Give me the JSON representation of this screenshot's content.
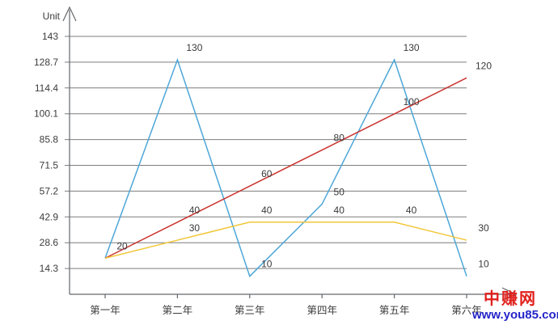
{
  "chart_data": {
    "type": "line",
    "title": "",
    "unit_label": "Unit",
    "categories": [
      "第一年",
      "第二年",
      "第三年",
      "第四年",
      "第五年",
      "第六年"
    ],
    "y_ticks": [
      143,
      128.7,
      114.4,
      100.1,
      85.8,
      71.5,
      57.2,
      42.9,
      28.6,
      14.3
    ],
    "ylim": [
      0,
      143
    ],
    "grid": true,
    "legend": "none",
    "series": [
      {
        "name": "series-blue",
        "color": "#4da7d8",
        "values": [
          20,
          130,
          10,
          50,
          130,
          10
        ]
      },
      {
        "name": "series-red",
        "color": "#ca3431",
        "values": [
          20,
          40,
          60,
          80,
          100,
          120
        ]
      },
      {
        "name": "series-yellow",
        "color": "#f2c73b",
        "values": [
          20,
          30,
          40,
          40,
          40,
          30
        ]
      }
    ],
    "shared_start_label": "20",
    "axis_color": "#63676b",
    "grid_color": "#7d7d7d",
    "text_color": "#3c3c3c",
    "label_color": "#3a3a3a"
  },
  "watermark": {
    "site_name": "中赚网",
    "site_url": "www.you85.com",
    "name_color": "#e0201c",
    "url_color": "#2424ca"
  }
}
